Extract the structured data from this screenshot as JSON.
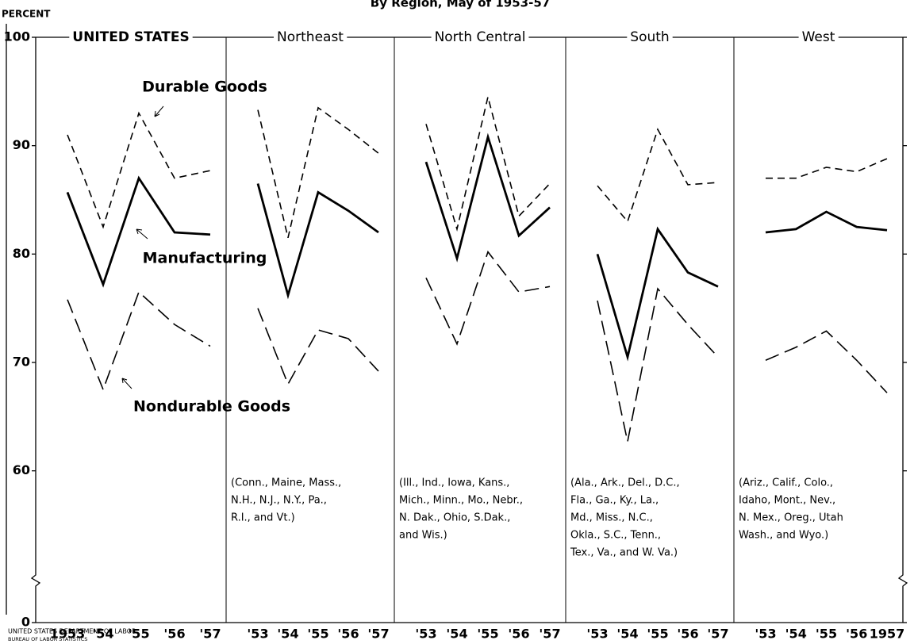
{
  "chart_data": {
    "type": "line",
    "title": "By Region, May of 1953-57",
    "y_label": "PERCENT",
    "ylim": [
      0,
      100
    ],
    "y_break": [
      0,
      46
    ],
    "yticks": [
      0,
      60,
      70,
      80,
      90,
      100
    ],
    "color": "#000000",
    "series_names": [
      {
        "name": "Durable Goods",
        "dash": "short"
      },
      {
        "name": "Manufacturing",
        "dash": "solid"
      },
      {
        "name": "Nondurable Goods",
        "dash": "long"
      }
    ],
    "panels": [
      {
        "title": "UNITED STATES",
        "categories": [
          "1953",
          "'54",
          "'55",
          "'56",
          "'57"
        ],
        "series": [
          {
            "values": [
              91,
              82.5,
              93,
              87,
              87.7
            ]
          },
          {
            "values": [
              85.7,
              77.2,
              87,
              82,
              81.8
            ]
          },
          {
            "values": [
              75.8,
              67.5,
              76.5,
              73.5,
              71.5
            ]
          }
        ]
      },
      {
        "title": "Northeast",
        "categories": [
          "'53",
          "'54",
          "'55",
          "'56",
          "'57"
        ],
        "series": [
          {
            "values": [
              93.3,
              81.5,
              93.5,
              91.5,
              89.3
            ]
          },
          {
            "values": [
              86.5,
              76.2,
              85.7,
              84,
              82
            ]
          },
          {
            "values": [
              75,
              68,
              73,
              72.2,
              69.2
            ]
          }
        ],
        "note": [
          "(Conn., Maine, Mass.,",
          "N.H., N.J., N.Y., Pa.,",
          "R.I., and Vt.)"
        ]
      },
      {
        "title": "North Central",
        "categories": [
          "'53",
          "'54",
          "'55",
          "'56",
          "'57"
        ],
        "series": [
          {
            "values": [
              92,
              82.3,
              94.5,
              83.5,
              86.5
            ]
          },
          {
            "values": [
              88.5,
              79.6,
              90.8,
              81.7,
              84.3
            ]
          },
          {
            "values": [
              77.8,
              71.7,
              80.2,
              76.5,
              77
            ]
          }
        ],
        "note": [
          "(Ill., Ind., Iowa, Kans.,",
          "Mich., Minn., Mo., Nebr.,",
          "N. Dak., Ohio, S.Dak.,",
          "and Wis.)"
        ]
      },
      {
        "title": "South",
        "categories": [
          "'53",
          "'54",
          "'55",
          "'56",
          "'57"
        ],
        "series": [
          {
            "values": [
              86.3,
              83,
              91.5,
              86.4,
              86.6
            ]
          },
          {
            "values": [
              80,
              70.5,
              82.3,
              78.3,
              77
            ]
          },
          {
            "values": [
              75.7,
              62.7,
              76.8,
              73.5,
              70.5
            ]
          }
        ],
        "note": [
          "(Ala., Ark., Del., D.C.,",
          "Fla., Ga., Ky., La.,",
          "Md., Miss., N.C.,",
          "Okla., S.C., Tenn.,",
          "Tex., Va., and W. Va.)"
        ]
      },
      {
        "title": "West",
        "categories": [
          "'53",
          "'54",
          "'55",
          "'56",
          "1957"
        ],
        "series": [
          {
            "values": [
              87,
              87,
              88,
              87.6,
              88.8
            ]
          },
          {
            "values": [
              82,
              82.3,
              83.9,
              82.5,
              82.2
            ]
          },
          {
            "values": [
              70.2,
              71.4,
              72.9,
              70.2,
              67.2
            ]
          }
        ],
        "note": [
          "(Ariz., Calif., Colo.,",
          "Idaho, Mont., Nev.,",
          "N. Mex., Oreg., Utah",
          "Wash., and Wyo.)"
        ]
      }
    ],
    "footer": [
      "UNITED STATES DEPARTMENT OF LABOR",
      "BUREAU OF LABOR STATISTICS"
    ]
  }
}
